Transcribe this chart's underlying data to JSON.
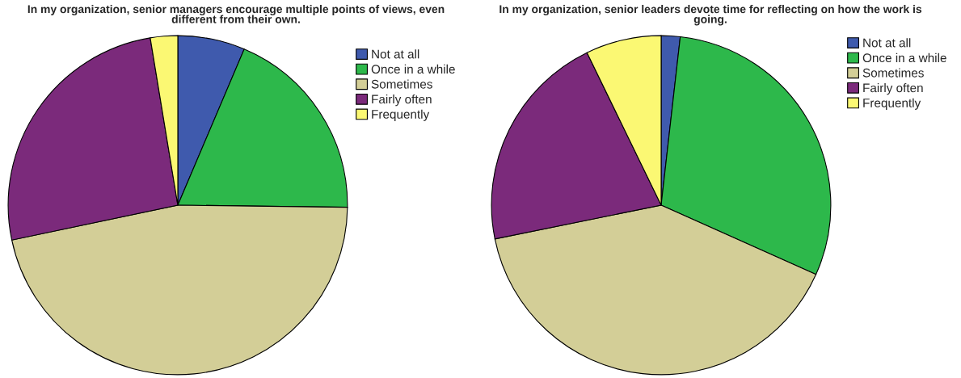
{
  "chart_data": [
    {
      "type": "pie",
      "title": "In my organization, senior managers encourage multiple points of views, even\ndifferent from their own.",
      "categories": [
        "Not at all",
        "Once in a while",
        "Sometimes",
        "Fairly often",
        "Frequently"
      ],
      "values": [
        6.4,
        18.8,
        46.5,
        25.7,
        2.6
      ],
      "colors": [
        "#3f5aad",
        "#2db84b",
        "#d3ce97",
        "#7b2a7b",
        "#fbf873"
      ],
      "legend": "top right"
    },
    {
      "type": "pie",
      "title": "In my organization, senior leaders devote time for reflecting on how the work is\ngoing.",
      "categories": [
        "Not at all",
        "Once in a while",
        "Sometimes",
        "Fairly often",
        "Frequently"
      ],
      "values": [
        1.8,
        29.9,
        40.1,
        21.0,
        7.2
      ],
      "colors": [
        "#3f5aad",
        "#2db84b",
        "#d3ce97",
        "#7b2a7b",
        "#fbf873"
      ],
      "legend": "top right"
    }
  ]
}
